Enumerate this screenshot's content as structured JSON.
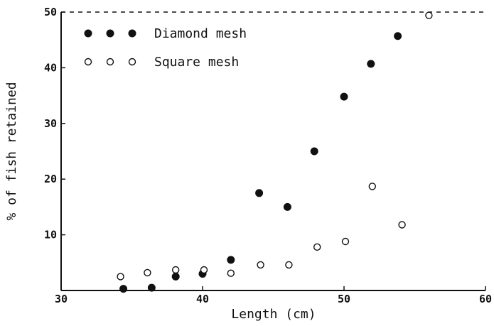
{
  "chart_data": {
    "type": "scatter",
    "title": "",
    "xlabel": "Length (cm)",
    "ylabel": "% of fish retained",
    "xlim": [
      30,
      60
    ],
    "ylim": [
      0,
      50
    ],
    "xticks": [
      30,
      40,
      50,
      60
    ],
    "yticks": [
      10,
      20,
      30,
      40,
      50
    ],
    "x_tick_labels": [
      "30",
      "40",
      "50",
      "60"
    ],
    "y_tick_labels": [
      "10",
      "20",
      "30",
      "40",
      "50"
    ],
    "grid": false,
    "legend_position": "top-left",
    "series": [
      {
        "name": "Diamond mesh",
        "marker": "filled-circle",
        "points": [
          {
            "x": 34.4,
            "y": 0.3
          },
          {
            "x": 36.4,
            "y": 0.5
          },
          {
            "x": 38.1,
            "y": 2.5
          },
          {
            "x": 40.0,
            "y": 3.0
          },
          {
            "x": 42.0,
            "y": 5.5
          },
          {
            "x": 44.0,
            "y": 17.5
          },
          {
            "x": 46.0,
            "y": 15.0
          },
          {
            "x": 47.9,
            "y": 25.0
          },
          {
            "x": 50.0,
            "y": 34.8
          },
          {
            "x": 51.9,
            "y": 40.7
          },
          {
            "x": 53.8,
            "y": 45.7
          }
        ]
      },
      {
        "name": "Square mesh",
        "marker": "open-circle",
        "points": [
          {
            "x": 34.2,
            "y": 2.5
          },
          {
            "x": 36.1,
            "y": 3.2
          },
          {
            "x": 38.1,
            "y": 3.7
          },
          {
            "x": 40.1,
            "y": 3.7
          },
          {
            "x": 42.0,
            "y": 3.1
          },
          {
            "x": 44.1,
            "y": 4.6
          },
          {
            "x": 46.1,
            "y": 4.6
          },
          {
            "x": 48.1,
            "y": 7.8
          },
          {
            "x": 50.1,
            "y": 8.8
          },
          {
            "x": 52.0,
            "y": 18.7
          },
          {
            "x": 54.1,
            "y": 11.8
          },
          {
            "x": 56.0,
            "y": 49.4
          }
        ]
      }
    ]
  }
}
